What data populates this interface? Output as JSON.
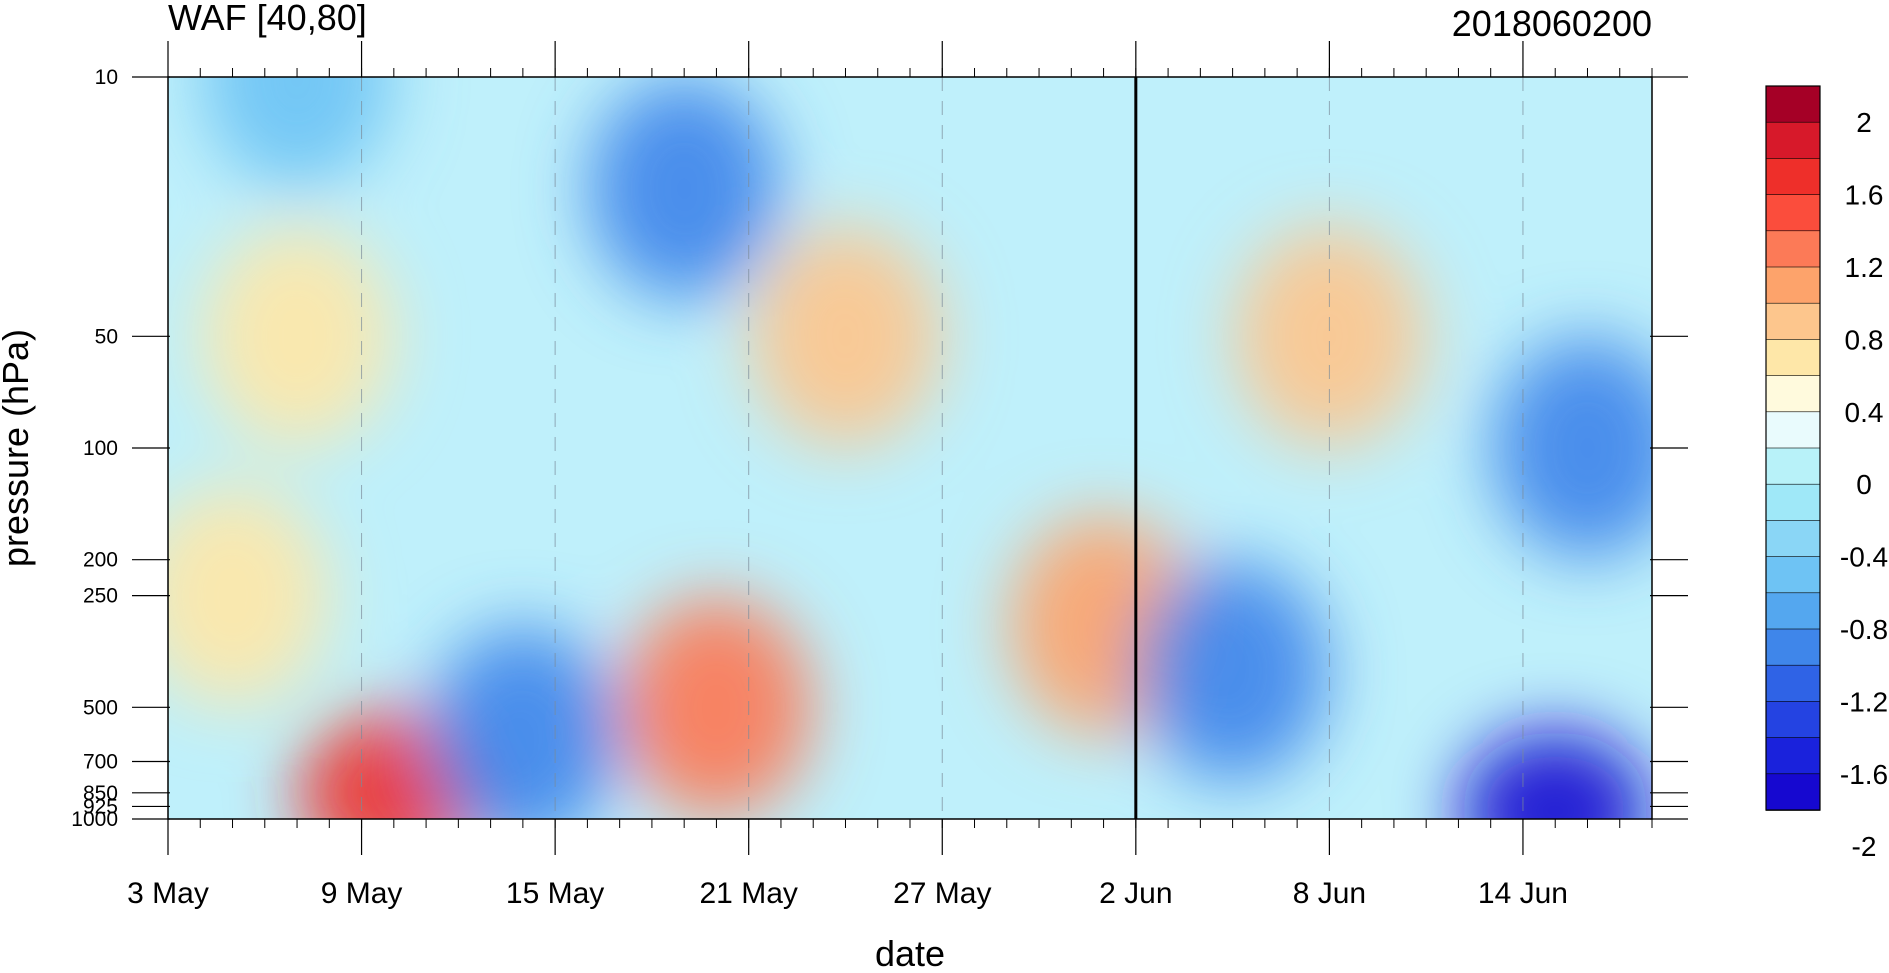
{
  "chart_data": {
    "type": "heatmap",
    "title_left": "WAF [40,80]",
    "title_right": "2018060200",
    "xlabel": "date",
    "ylabel": "pressure (hPa)",
    "x_ticks": [
      "3 May",
      "9 May",
      "15 May",
      "21 May",
      "27 May",
      "2 Jun",
      "8 Jun",
      "14 Jun"
    ],
    "x_range": [
      "2018-05-03",
      "2018-06-18"
    ],
    "y_ticks": [
      "10",
      "50",
      "100",
      "200",
      "250",
      "500",
      "700",
      "850",
      "925",
      "1000"
    ],
    "y_scale": "log",
    "y_range": [
      1000,
      10
    ],
    "marker_date": "2 Jun",
    "colorbar_labels": [
      "2",
      "1.6",
      "1.2",
      "0.8",
      "0.4",
      "0",
      "-0.4",
      "-0.8",
      "-1.2",
      "-1.6",
      "-2"
    ],
    "colorbar_colors": [
      "#a50026",
      "#d7192a",
      "#ee2f2a",
      "#fb4d3c",
      "#fc7a57",
      "#fda36b",
      "#fdc68d",
      "#fee7a8",
      "#fffadd",
      "#e9fbfd",
      "#b8f2f9",
      "#9fe8f8",
      "#8ad6f6",
      "#6ec3f4",
      "#54a7ef",
      "#3f86ea",
      "#2f63e6",
      "#2443e2",
      "#1a22dc",
      "#1608d0"
    ],
    "regions": [
      {
        "date": "5 May",
        "p": 250,
        "value": 0.6
      },
      {
        "date": "7 May",
        "p": 50,
        "value": 0.6
      },
      {
        "date": "10 May",
        "p": 850,
        "value": 1.5
      },
      {
        "date": "20 May",
        "p": 500,
        "value": 1.2
      },
      {
        "date": "24 May",
        "p": 50,
        "value": 0.8
      },
      {
        "date": "1 Jun",
        "p": 300,
        "value": 1.0
      },
      {
        "date": "8 Jun",
        "p": 50,
        "value": 0.8
      },
      {
        "date": "7 May",
        "p": 10,
        "value": -0.6
      },
      {
        "date": "19 May",
        "p": 20,
        "value": -1.0
      },
      {
        "date": "14 May",
        "p": 600,
        "value": -1.0
      },
      {
        "date": "5 Jun",
        "p": 400,
        "value": -1.0
      },
      {
        "date": "15 Jun",
        "p": 950,
        "value": -2.0
      },
      {
        "date": "16 Jun",
        "p": 100,
        "value": -1.0
      }
    ]
  }
}
